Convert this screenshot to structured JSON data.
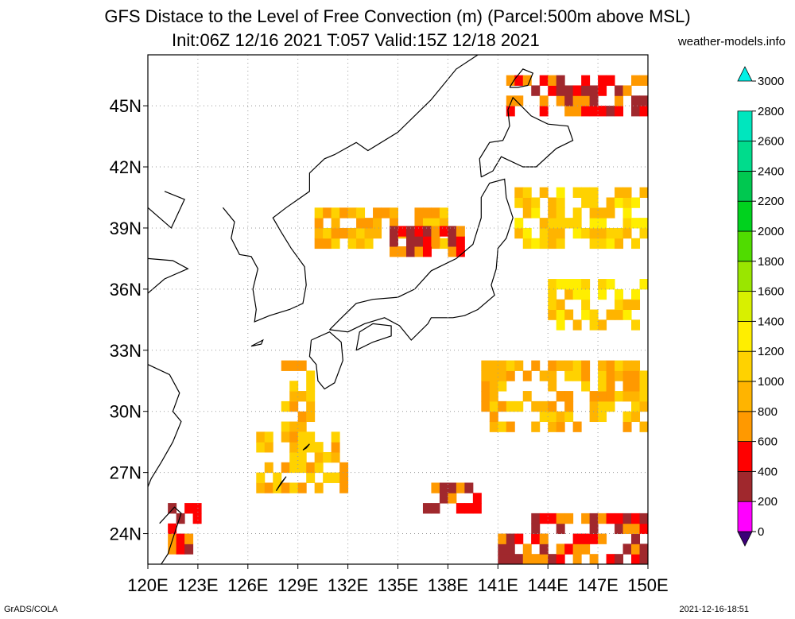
{
  "title": {
    "line1": "GFS Distace to the Level of Free Convection (m) (Parcel:500m above MSL)",
    "line2": "Init:06Z 12/16 2021 T:057 Valid:15Z 12/18 2021"
  },
  "credit": "weather-models.info",
  "footer": {
    "left": "GrADS/COLA",
    "right": "2021-12-16-18:51"
  },
  "map": {
    "lon_range": [
      120,
      150
    ],
    "lat_range": [
      22.5,
      47.5
    ],
    "lon_ticks": [
      "120E",
      "123E",
      "126E",
      "129E",
      "132E",
      "135E",
      "138E",
      "141E",
      "144E",
      "147E",
      "150E"
    ],
    "lat_ticks": [
      "24N",
      "27N",
      "30N",
      "33N",
      "36N",
      "39N",
      "42N",
      "45N"
    ],
    "grid": true
  },
  "colorbar": {
    "labels": [
      "0",
      "200",
      "400",
      "600",
      "800",
      "1000",
      "1200",
      "1400",
      "1600",
      "1800",
      "2000",
      "2200",
      "2400",
      "2600",
      "2800",
      "3000"
    ],
    "colors": [
      "#3c0078",
      "#ff00ff",
      "#a0282d",
      "#ff0000",
      "#ff9900",
      "#ffb400",
      "#ffd200",
      "#ffee00",
      "#d8f000",
      "#9ae600",
      "#50dc00",
      "#00d21e",
      "#00c850",
      "#00dc8c",
      "#00e6be",
      "#00f0e6"
    ]
  },
  "shading": [
    {
      "lon": [
        130,
        138
      ],
      "lat": [
        38,
        39.6
      ],
      "level": "800-1000"
    },
    {
      "lon": [
        134,
        138.8
      ],
      "lat": [
        37.6,
        38.8
      ],
      "level": "400-600"
    },
    {
      "lon": [
        141.5,
        150
      ],
      "lat": [
        44.5,
        46.5
      ],
      "level": "400-600"
    },
    {
      "lon": [
        142,
        150
      ],
      "lat": [
        38,
        41
      ],
      "level": "1000-1200"
    },
    {
      "lon": [
        144,
        150
      ],
      "lat": [
        34,
        36.5
      ],
      "level": "1000-1400"
    },
    {
      "lon": [
        140,
        150
      ],
      "lat": [
        29,
        32.5
      ],
      "level": "800-1000"
    },
    {
      "lon": [
        128,
        130
      ],
      "lat": [
        29,
        32.5
      ],
      "level": "800-1000"
    },
    {
      "lon": [
        126.5,
        132
      ],
      "lat": [
        26,
        29
      ],
      "level": "800-1000"
    },
    {
      "lon": [
        121.2,
        123
      ],
      "lat": [
        23,
        25.5
      ],
      "level": "600-800"
    },
    {
      "lon": [
        136,
        140
      ],
      "lat": [
        25,
        26.5
      ],
      "level": "600-800"
    },
    {
      "lon": [
        141,
        144
      ],
      "lat": [
        22.5,
        24
      ],
      "level": "400-600"
    },
    {
      "lon": [
        143,
        150
      ],
      "lat": [
        22.5,
        25
      ],
      "level": "400-600"
    }
  ]
}
